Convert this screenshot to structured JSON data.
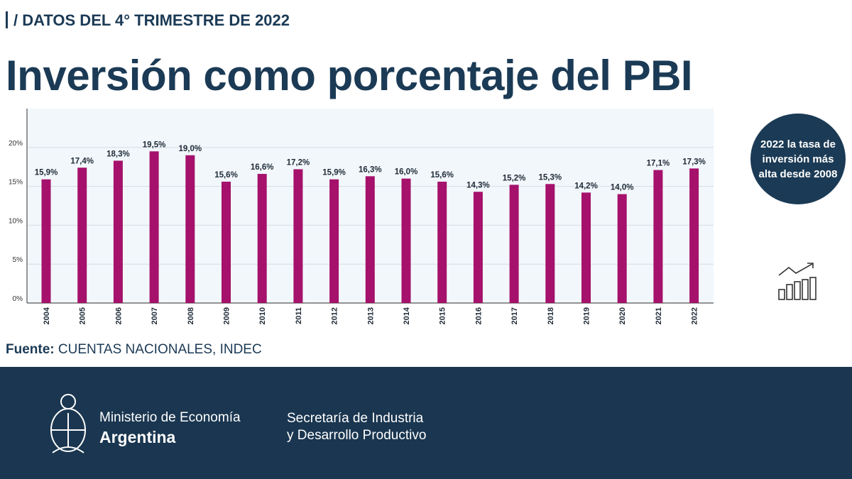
{
  "header": {
    "kicker": "/ DATOS DEL 4° TRIMESTRE DE 2022",
    "title": "Inversión como porcentaje del PBI"
  },
  "chart_data": {
    "type": "bar",
    "title": "Inversión como porcentaje del PBI",
    "categories": [
      "2004",
      "2005",
      "2006",
      "2007",
      "2008",
      "2009",
      "2010",
      "2011",
      "2012",
      "2013",
      "2014",
      "2015",
      "2016",
      "2017",
      "2018",
      "2019",
      "2020",
      "2021",
      "2022"
    ],
    "values": [
      15.9,
      17.4,
      18.3,
      19.5,
      19.0,
      15.6,
      16.6,
      17.2,
      15.9,
      16.3,
      16.0,
      15.6,
      14.3,
      15.2,
      15.3,
      14.2,
      14.0,
      17.1,
      17.3
    ],
    "data_labels": [
      "15,9%",
      "17,4%",
      "18,3%",
      "19,5%",
      "19,0%",
      "15,6%",
      "16,6%",
      "17,2%",
      "15,9%",
      "16,3%",
      "16,0%",
      "15,6%",
      "14,3%",
      "15,2%",
      "15,3%",
      "14,2%",
      "14,0%",
      "17,1%",
      "17,3%"
    ],
    "yticks": [
      "0%",
      "5%",
      "10%",
      "15%",
      "20%"
    ],
    "ytick_values": [
      0,
      5,
      10,
      15,
      20
    ],
    "ylim": [
      0,
      25
    ],
    "grid": true,
    "bar_color": "#a5116b",
    "plot_background": "#f2f7fb"
  },
  "callout": {
    "text": "2022 la tasa de inversión más alta desde 2008",
    "icon": "growth-chart-icon"
  },
  "source": {
    "label": "Fuente:",
    "value": " CUENTAS NACIONALES, INDEC"
  },
  "footer": {
    "ministry_line1": "Ministerio de Economía",
    "ministry_line2": "Argentina",
    "secretariat_line1": "Secretaría de Industria",
    "secretariat_line2": "y Desarrollo Productivo",
    "background": "#1a3650"
  }
}
